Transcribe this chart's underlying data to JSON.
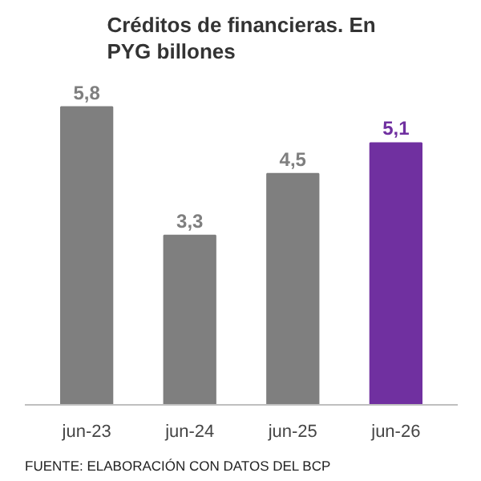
{
  "chart_data": {
    "type": "bar",
    "title": "Créditos de financieras. En PYG billones",
    "categories": [
      "jun-23",
      "jun-24",
      "jun-25",
      "jun-26"
    ],
    "values": [
      5.8,
      3.3,
      4.5,
      5.1
    ],
    "colors": [
      "#7f7f7f",
      "#7f7f7f",
      "#7f7f7f",
      "#7030a0"
    ],
    "value_labels": [
      "5,8",
      "3,3",
      "4,5",
      "5,1"
    ],
    "grid": false,
    "annotations": [
      "FUENTE: ELABORACIÓN CON DATOS DEL BCP"
    ]
  }
}
